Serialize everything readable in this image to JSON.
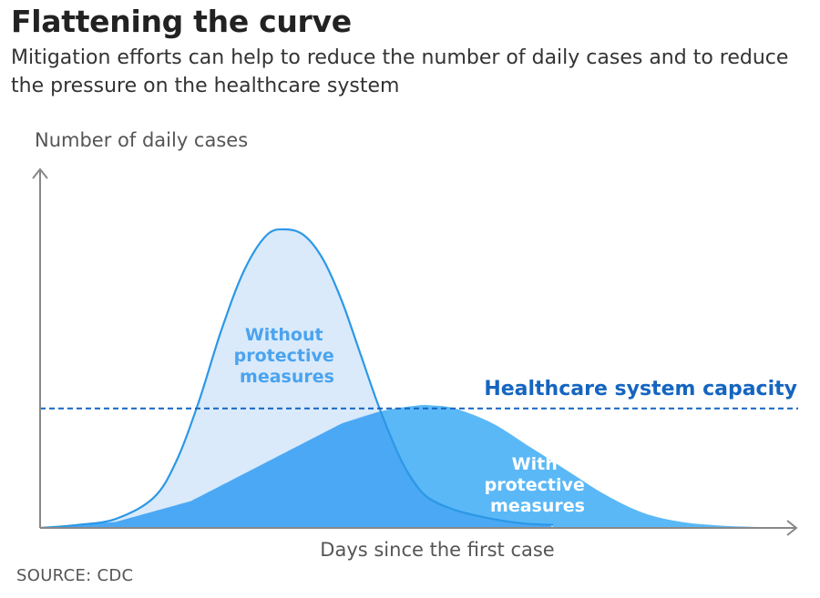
{
  "title": "Flattening the curve",
  "subtitle": "Mitigation efforts can help to reduce the number of daily cases and to reduce the pressure on the healthcare system",
  "source": "SOURCE: CDC",
  "colors": {
    "without_fill": "#d6e8fa",
    "without_line": "#2c98e6",
    "with_fill": "#5ab8f7",
    "overlap_fill": "#4ba8f5",
    "capacity_line": "#1565c0",
    "axis": "#888888"
  },
  "chart_data": {
    "type": "area",
    "title": "Flattening the curve",
    "xlabel": "Days since the first case",
    "ylabel": "Number of daily cases",
    "xlim": [
      0,
      100
    ],
    "ylim": [
      0,
      100
    ],
    "grid": false,
    "series": [
      {
        "name": "Without protective measures",
        "label_lines": [
          "Without",
          "protective",
          "measures"
        ],
        "x": [
          0,
          5,
          10,
          15,
          18,
          21,
          24,
          27,
          30,
          32.5,
          35,
          37.5,
          40,
          42.5,
          45,
          48,
          51,
          55,
          60,
          64,
          68
        ],
        "y": [
          0,
          1,
          3,
          10,
          22,
          42,
          66,
          86,
          98,
          100,
          98,
          90,
          76,
          58,
          40,
          22,
          11,
          6,
          3,
          1.5,
          1
        ]
      },
      {
        "name": "With protective measures",
        "label_lines": [
          "With",
          "protective",
          "measures"
        ],
        "x": [
          0,
          10,
          20,
          30,
          40,
          45,
          50,
          52,
          55,
          60,
          65,
          70,
          75,
          80,
          85,
          90,
          95,
          100
        ],
        "y": [
          0,
          2,
          9,
          22,
          35,
          39,
          41,
          41,
          40,
          35,
          27,
          19,
          11,
          5,
          2,
          0.8,
          0.3,
          0
        ]
      }
    ],
    "threshold": {
      "label": "Healthcare system capacity",
      "value": 40
    }
  }
}
